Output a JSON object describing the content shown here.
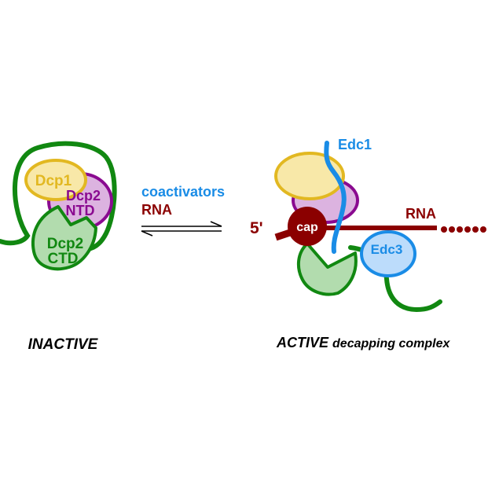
{
  "inactive": {
    "dcp1_label": "Dcp1",
    "ntd_line1": "Dcp2",
    "ntd_line2": "NTD",
    "ctd_line1": "Dcp2",
    "ctd_line2": "CTD",
    "caption": "INACTIVE"
  },
  "equilibrium": {
    "coactivators_label": "coactivators",
    "rna_label": "RNA"
  },
  "active": {
    "edc1_label": "Edc1",
    "five_prime_label": "5'",
    "cap_label": "cap",
    "rna_label": "RNA",
    "edc3_label": "Edc3",
    "caption_bold": "ACTIVE",
    "caption_rest": "decapping complex"
  },
  "colors": {
    "green_dark": "#118811",
    "green_fill": "#b2dcae",
    "purple_dark": "#8a0a90",
    "purple_fill": "#dcb3e0",
    "yellow_dark": "#e2b821",
    "yellow_fill": "#f8e8a8",
    "blue": "#1a8ce6",
    "blue_fill": "#bcdcfb",
    "maroon": "#8b0000"
  }
}
